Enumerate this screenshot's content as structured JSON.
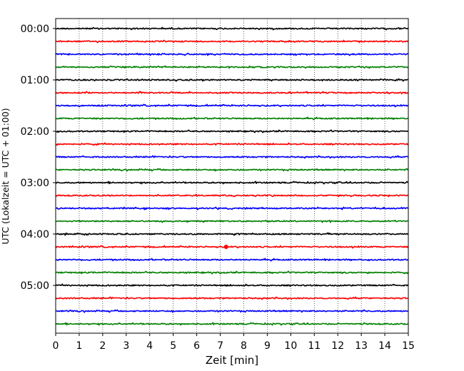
{
  "chart_data": {
    "type": "line",
    "title": "",
    "xlabel": "Zeit  [min]",
    "ylabel": "UTC (Lokalzeit = UTC + 01:00)",
    "xlim": [
      0,
      15
    ],
    "x_ticks": [
      "0",
      "1",
      "2",
      "3",
      "4",
      "5",
      "6",
      "7",
      "8",
      "9",
      "10",
      "11",
      "12",
      "13",
      "14",
      "15"
    ],
    "y_ticks": [
      "00:00",
      "01:00",
      "02:00",
      "03:00",
      "04:00",
      "05:00"
    ],
    "grid": "vertical dotted",
    "trace_interval_minutes": 15,
    "trace_count": 24,
    "trace_colors": [
      "#000000",
      "#ff0000",
      "#0000ff",
      "#008000"
    ],
    "traces": [
      {
        "start": "00:00",
        "color": "#000000"
      },
      {
        "start": "00:15",
        "color": "#ff0000"
      },
      {
        "start": "00:30",
        "color": "#0000ff"
      },
      {
        "start": "00:45",
        "color": "#008000"
      },
      {
        "start": "01:00",
        "color": "#000000"
      },
      {
        "start": "01:15",
        "color": "#ff0000"
      },
      {
        "start": "01:30",
        "color": "#0000ff"
      },
      {
        "start": "01:45",
        "color": "#008000"
      },
      {
        "start": "02:00",
        "color": "#000000"
      },
      {
        "start": "02:15",
        "color": "#ff0000"
      },
      {
        "start": "02:30",
        "color": "#0000ff"
      },
      {
        "start": "02:45",
        "color": "#008000"
      },
      {
        "start": "03:00",
        "color": "#000000"
      },
      {
        "start": "03:15",
        "color": "#ff0000"
      },
      {
        "start": "03:30",
        "color": "#0000ff"
      },
      {
        "start": "03:45",
        "color": "#008000"
      },
      {
        "start": "04:00",
        "color": "#000000"
      },
      {
        "start": "04:15",
        "color": "#ff0000"
      },
      {
        "start": "04:30",
        "color": "#0000ff"
      },
      {
        "start": "04:45",
        "color": "#008000"
      },
      {
        "start": "05:00",
        "color": "#000000"
      },
      {
        "start": "05:15",
        "color": "#ff0000"
      },
      {
        "start": "05:30",
        "color": "#0000ff"
      },
      {
        "start": "05:45",
        "color": "#008000"
      }
    ],
    "events": [
      {
        "trace_start": "04:15",
        "minute": 7.25,
        "color": "#ff0000"
      }
    ]
  }
}
